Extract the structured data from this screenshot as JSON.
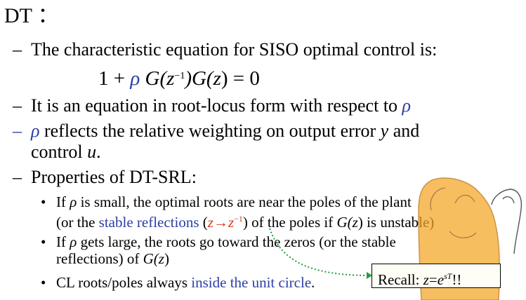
{
  "slide": {
    "title": "DT ：",
    "equation": {
      "one": "1",
      "plus": " + ",
      "rho": "ρ",
      "G1": " G(z",
      "inv": "−1",
      "G2": ")G(",
      "z": "z",
      "tail": ") = 0"
    },
    "items": [
      {
        "dash": "–",
        "text": "The characteristic equation for SISO optimal control is:"
      },
      {
        "dash": "–",
        "text": "It is an equation in root-locus form with respect to ",
        "rho": "ρ"
      },
      {
        "dash": "–",
        "rho": "ρ",
        "text1": " reflects the relative weighting on output error ",
        "y": "y",
        "text2": " and",
        "line2a": "control ",
        "u": "u",
        "line2b": "."
      },
      {
        "dash": "–",
        "text": "Properties of DT-SRL:"
      }
    ],
    "subitems": {
      "b1": {
        "bullet": "•",
        "a": "If ",
        "rho": "ρ",
        "b": " is small, the optimal roots are near the poles of the plant",
        "c": "(or the ",
        "link": "stable reflections",
        "d": " (",
        "z1": "z",
        "arrow": "→",
        "z2": "z",
        "inv": "−1",
        "e": ") of the poles if ",
        "G": "G(",
        "z3": "z",
        "f": ") is unstable)"
      },
      "b2": {
        "bullet": "•",
        "a": "If ",
        "rho": "ρ",
        "b": " gets large, the roots go toward the zeros (or the stable",
        "c": "reflections) of ",
        "G": "G(",
        "z": "z",
        "d": ")"
      },
      "b3": {
        "bullet": "•",
        "a": "CL roots/poles always ",
        "link": "inside the unit circle",
        "b": "."
      }
    },
    "recall": {
      "label": "Recall: ",
      "z": "z",
      "eq": "=",
      "e": "e",
      "sT": "sT",
      "bang": "!!"
    }
  },
  "colors": {
    "accent_blue": "#2d3fa5",
    "annotation_orange": "#f5a623",
    "dotted_green": "#1f9e3a"
  }
}
